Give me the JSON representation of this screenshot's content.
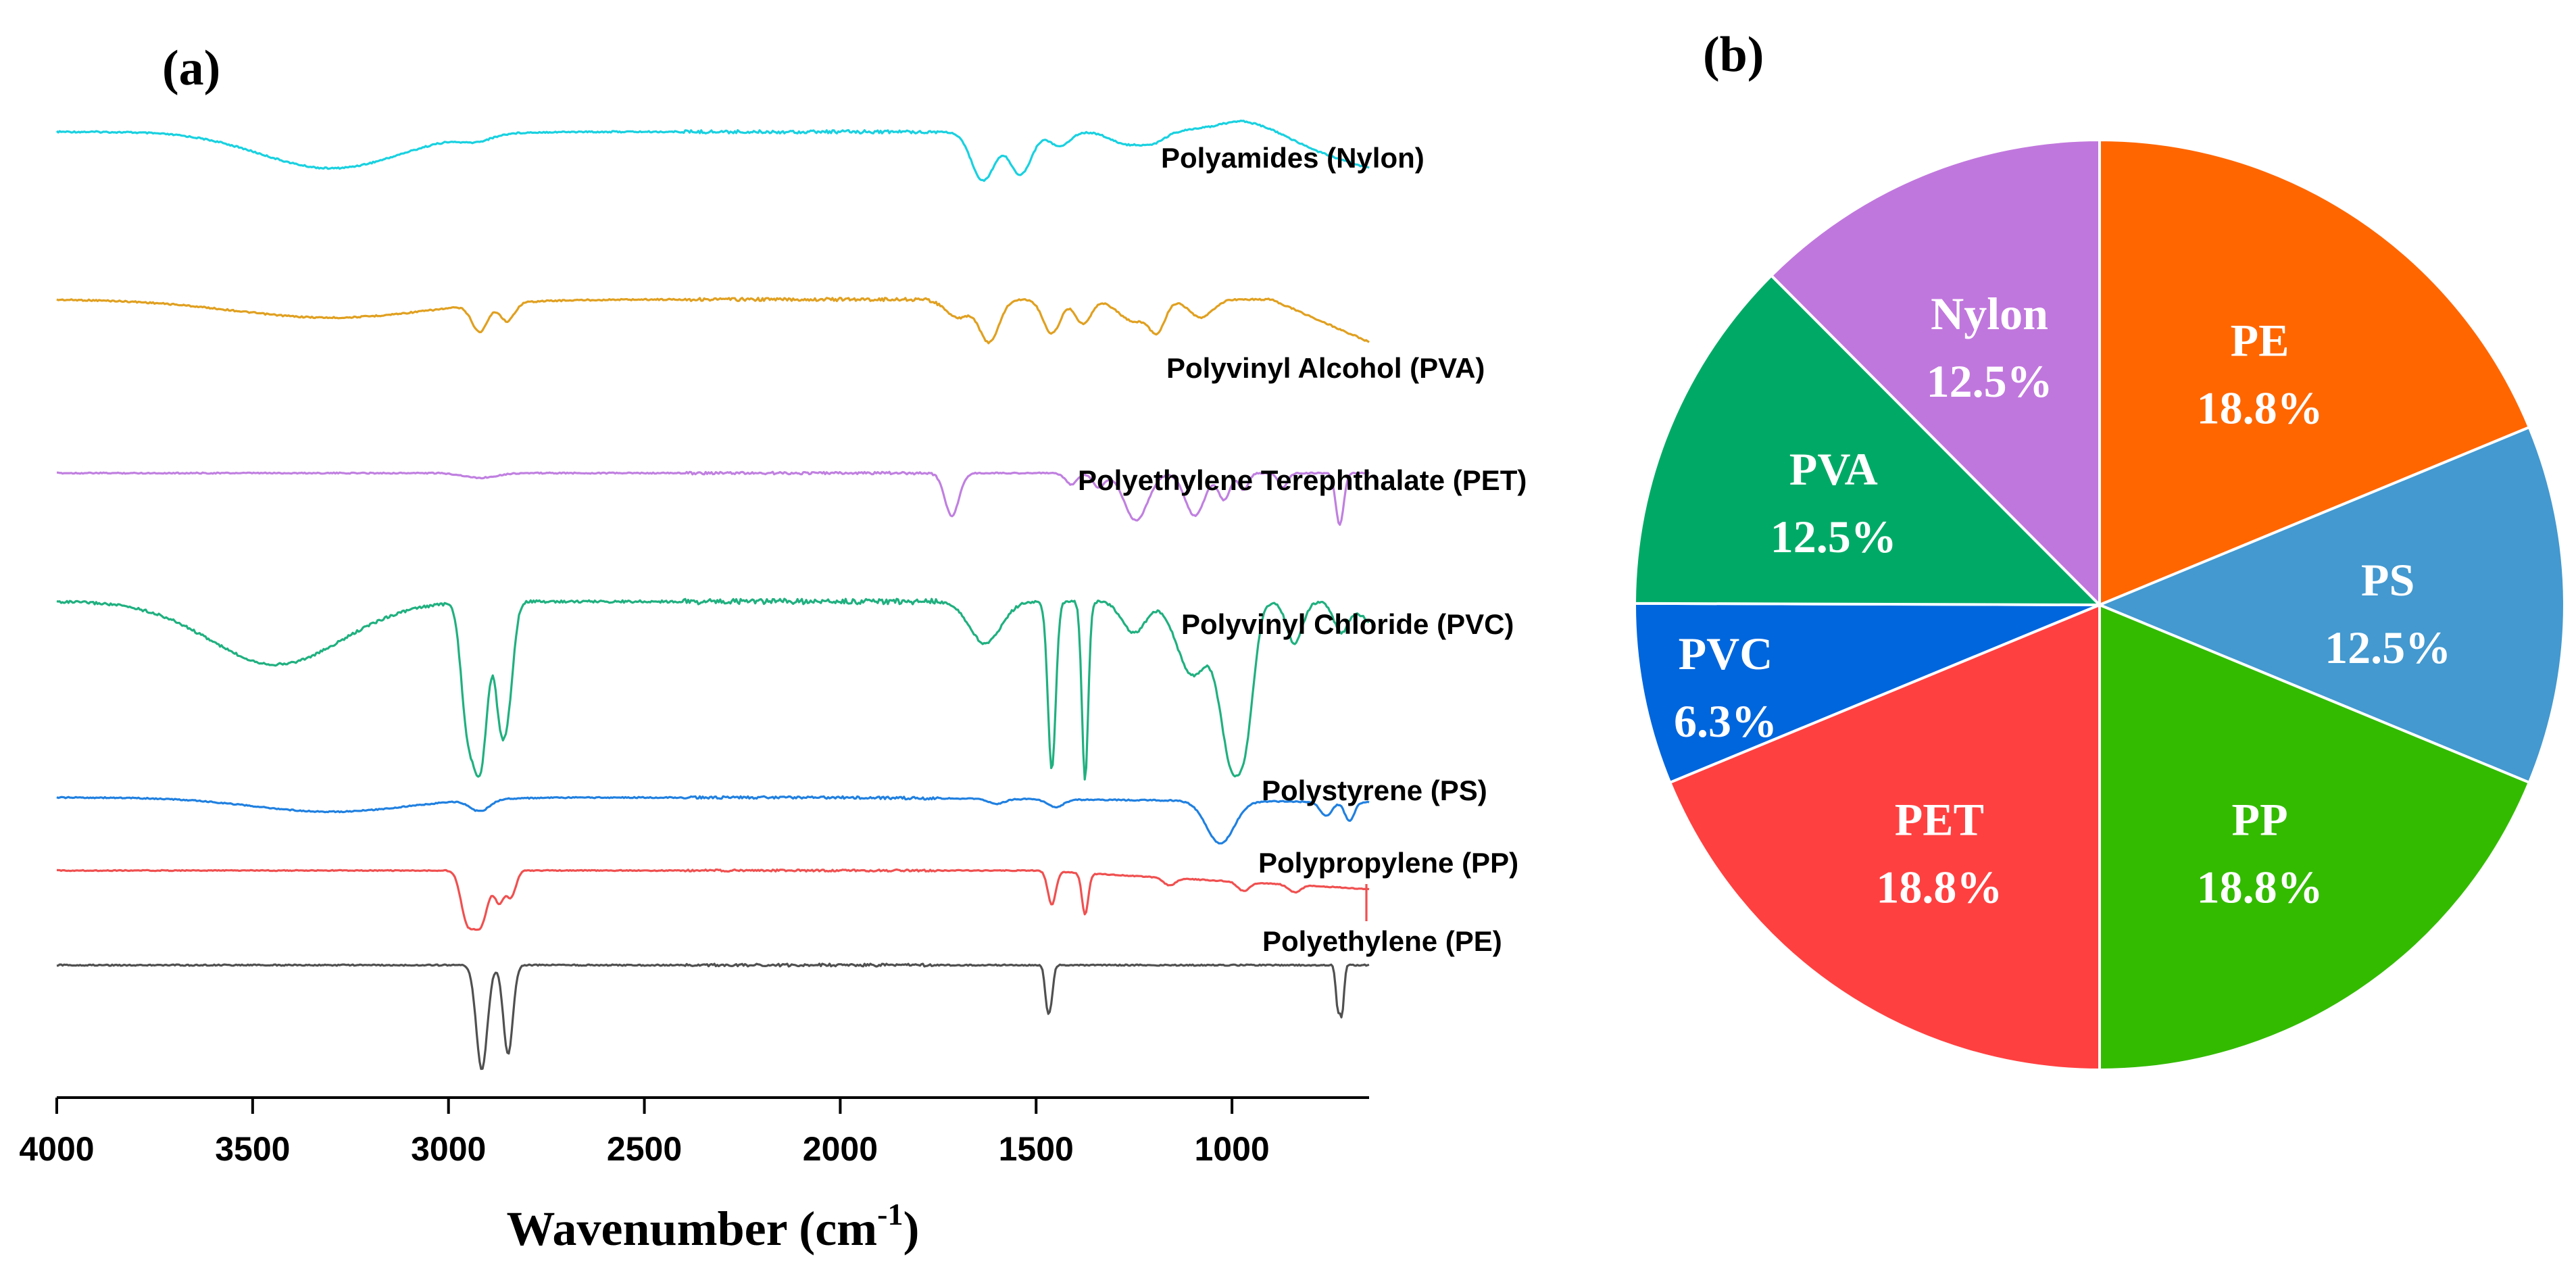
{
  "chart_data": [
    {
      "type": "line",
      "panel": "(a)",
      "title": "",
      "xlabel": "Wavenumber (cm",
      "xlabel_superscript": "-1",
      "xlabel_suffix": ")",
      "ylabel": "",
      "xlim": [
        4000,
        650
      ],
      "x_reversed": true,
      "ticks": [
        {
          "value": 4000,
          "label": "4000"
        },
        {
          "value": 3500,
          "label": "3500"
        },
        {
          "value": 3000,
          "label": "3000"
        },
        {
          "value": 2500,
          "label": "2500"
        },
        {
          "value": 2000,
          "label": "2000"
        },
        {
          "value": 1500,
          "label": "1500"
        },
        {
          "value": 1000,
          "label": "1000"
        }
      ],
      "series": [
        {
          "name": "Polyamides (Nylon)",
          "color": "#19D1E0",
          "baseline": 0.0,
          "bands": [
            [
              3300,
              0.3,
              180
            ],
            [
              2930,
              0.05,
              40
            ],
            [
              1635,
              0.4,
              30
            ],
            [
              1540,
              0.35,
              28
            ],
            [
              1440,
              0.12,
              25
            ],
            [
              1270,
              0.1,
              40
            ],
            [
              1200,
              0.08,
              30
            ]
          ],
          "slope_from": 980,
          "slope": 0.3,
          "end_bump": [
            940,
            -0.1,
            90
          ]
        },
        {
          "name": "Polyvinyl Alcohol (PVA)",
          "color": "#E0A020",
          "baseline": 0.0,
          "bands": [
            [
              3300,
              0.15,
              250
            ],
            [
              2920,
              0.22,
              20
            ],
            [
              2850,
              0.15,
              18
            ],
            [
              1700,
              0.15,
              30
            ],
            [
              1620,
              0.35,
              25
            ],
            [
              1460,
              0.28,
              22
            ],
            [
              1380,
              0.2,
              20
            ],
            [
              1250,
              0.18,
              40
            ],
            [
              1190,
              0.22,
              20
            ],
            [
              1080,
              0.15,
              30
            ]
          ],
          "slope_from": 900,
          "slope": 0.35
        },
        {
          "name": "Polyethylene Terephthalate (PET)",
          "color": "#C080E0",
          "baseline": 0.0,
          "bands": [
            [
              2920,
              0.05,
              40
            ],
            [
              1715,
              0.45,
              18
            ],
            [
              1410,
              0.12,
              15
            ],
            [
              1340,
              0.15,
              15
            ],
            [
              1245,
              0.5,
              30
            ],
            [
              1095,
              0.45,
              25
            ],
            [
              1020,
              0.28,
              15
            ],
            [
              970,
              0.18,
              12
            ],
            [
              870,
              0.15,
              12
            ],
            [
              725,
              0.55,
              10
            ]
          ],
          "slope_from": 2000,
          "slope": 0.0
        },
        {
          "name": "Polyvinyl Chloride (PVC)",
          "color": "#20B080",
          "baseline": 0.0,
          "bands": [
            [
              3440,
              0.3,
              170
            ],
            [
              2955,
              0.45,
              15
            ],
            [
              2920,
              0.8,
              20
            ],
            [
              2870,
              0.35,
              12
            ],
            [
              2850,
              0.5,
              15
            ],
            [
              1630,
              0.2,
              40
            ],
            [
              1460,
              0.8,
              10
            ],
            [
              1375,
              0.85,
              8
            ],
            [
              1250,
              0.15,
              30
            ],
            [
              1100,
              0.35,
              40
            ],
            [
              1000,
              0.75,
              30
            ],
            [
              960,
              0.35,
              20
            ],
            [
              840,
              0.2,
              20
            ],
            [
              720,
              0.15,
              20
            ]
          ],
          "slope_from": 700,
          "slope": 0.1
        },
        {
          "name": "Polystyrene (PS)",
          "color": "#2080E0",
          "baseline": 0.0,
          "bands": [
            [
              3300,
              0.15,
              200
            ],
            [
              2920,
              0.12,
              25
            ],
            [
              1600,
              0.05,
              20
            ],
            [
              1450,
              0.08,
              20
            ],
            [
              1030,
              0.45,
              35
            ],
            [
              760,
              0.15,
              15
            ],
            [
              700,
              0.2,
              12
            ]
          ],
          "slope_from": 2000,
          "slope": 0.05
        },
        {
          "name": "Polypropylene (PP)",
          "color": "#F05050",
          "baseline": 0.0,
          "bands": [
            [
              2955,
              0.55,
              15
            ],
            [
              2920,
              0.75,
              20
            ],
            [
              2870,
              0.4,
              12
            ],
            [
              2840,
              0.35,
              12
            ],
            [
              1460,
              0.45,
              10
            ],
            [
              1375,
              0.55,
              8
            ],
            [
              1160,
              0.1,
              15
            ],
            [
              970,
              0.12,
              15
            ],
            [
              840,
              0.1,
              15
            ]
          ],
          "slope_from": 1500,
          "slope": 0.25,
          "end_spike": true
        },
        {
          "name": "Polyethylene (PE)",
          "color": "#505050",
          "baseline": 0.0,
          "bands": [
            [
              2915,
              1.0,
              14
            ],
            [
              2848,
              0.85,
              12
            ],
            [
              1472,
              0.35,
              6
            ],
            [
              1462,
              0.3,
              6
            ],
            [
              730,
              0.4,
              5
            ],
            [
              719,
              0.45,
              5
            ]
          ],
          "slope_from": 2000,
          "slope": 0.0
        }
      ]
    },
    {
      "type": "pie",
      "panel": "(b)",
      "title": "",
      "start_angle_deg": 0,
      "direction": "clockwise",
      "slices": [
        {
          "label": "PE",
          "percent_text": "18.8%",
          "value": 18.8,
          "color": "#FF6600"
        },
        {
          "label": "PS",
          "percent_text": "12.5%",
          "value": 12.5,
          "color": "#4399D0"
        },
        {
          "label": "PP",
          "percent_text": "18.8%",
          "value": 18.8,
          "color": "#33BB00"
        },
        {
          "label": "PET",
          "percent_text": "18.8%",
          "value": 18.8,
          "color": "#FF4040"
        },
        {
          "label": "PVC",
          "percent_text": "6.3%",
          "value": 6.3,
          "color": "#0066DD"
        },
        {
          "label": "PVA",
          "percent_text": "12.5%",
          "value": 12.5,
          "color": "#00AA66"
        },
        {
          "label": "Nylon",
          "percent_text": "12.5%",
          "value": 12.5,
          "color": "#C077DD"
        }
      ]
    }
  ]
}
